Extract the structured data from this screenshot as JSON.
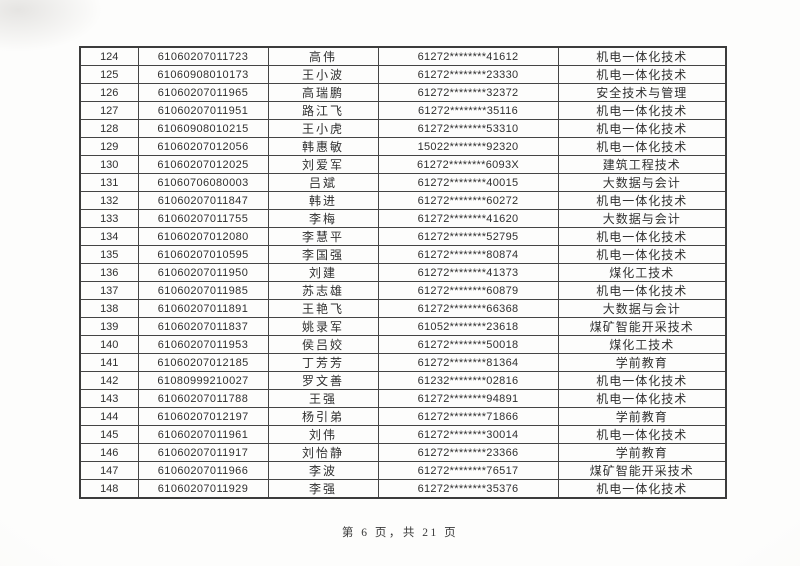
{
  "page": {
    "footer": "第 6 页，共 21 页"
  },
  "colors": {
    "page_background": "#fdfdfc",
    "table_border": "#454545",
    "text": "#2f2f2f"
  },
  "table": {
    "columns": [
      "row-number",
      "registration-id",
      "student-name",
      "masked-id-number",
      "major-name"
    ],
    "rows": [
      {
        "no": "124",
        "id": "61060207011723",
        "name": "高伟",
        "masked_id": "61272********41612",
        "major": "机电一体化技术"
      },
      {
        "no": "125",
        "id": "61060908010173",
        "name": "王小波",
        "masked_id": "61272********23330",
        "major": "机电一体化技术"
      },
      {
        "no": "126",
        "id": "61060207011965",
        "name": "高瑞鹏",
        "masked_id": "61272********32372",
        "major": "安全技术与管理"
      },
      {
        "no": "127",
        "id": "61060207011951",
        "name": "路江飞",
        "masked_id": "61272********35116",
        "major": "机电一体化技术"
      },
      {
        "no": "128",
        "id": "61060908010215",
        "name": "王小虎",
        "masked_id": "61272********53310",
        "major": "机电一体化技术"
      },
      {
        "no": "129",
        "id": "61060207012056",
        "name": "韩惠敏",
        "masked_id": "15022********92320",
        "major": "机电一体化技术"
      },
      {
        "no": "130",
        "id": "61060207012025",
        "name": "刘爱军",
        "masked_id": "61272********6093X",
        "major": "建筑工程技术"
      },
      {
        "no": "131",
        "id": "61060706080003",
        "name": "吕斌",
        "masked_id": "61272********40015",
        "major": "大数据与会计"
      },
      {
        "no": "132",
        "id": "61060207011847",
        "name": "韩进",
        "masked_id": "61272********60272",
        "major": "机电一体化技术"
      },
      {
        "no": "133",
        "id": "61060207011755",
        "name": "李梅",
        "masked_id": "61272********41620",
        "major": "大数据与会计"
      },
      {
        "no": "134",
        "id": "61060207012080",
        "name": "李慧平",
        "masked_id": "61272********52795",
        "major": "机电一体化技术"
      },
      {
        "no": "135",
        "id": "61060207010595",
        "name": "李国强",
        "masked_id": "61272********80874",
        "major": "机电一体化技术"
      },
      {
        "no": "136",
        "id": "61060207011950",
        "name": "刘建",
        "masked_id": "61272********41373",
        "major": "煤化工技术"
      },
      {
        "no": "137",
        "id": "61060207011985",
        "name": "苏志雄",
        "masked_id": "61272********60879",
        "major": "机电一体化技术"
      },
      {
        "no": "138",
        "id": "61060207011891",
        "name": "王艳飞",
        "masked_id": "61272********66368",
        "major": "大数据与会计"
      },
      {
        "no": "139",
        "id": "61060207011837",
        "name": "姚录军",
        "masked_id": "61052********23618",
        "major": "煤矿智能开采技术"
      },
      {
        "no": "140",
        "id": "61060207011953",
        "name": "侯吕姣",
        "masked_id": "61272********50018",
        "major": "煤化工技术"
      },
      {
        "no": "141",
        "id": "61060207012185",
        "name": "丁芳芳",
        "masked_id": "61272********81364",
        "major": "学前教育"
      },
      {
        "no": "142",
        "id": "61080999210027",
        "name": "罗文善",
        "masked_id": "61232********02816",
        "major": "机电一体化技术"
      },
      {
        "no": "143",
        "id": "61060207011788",
        "name": "王强",
        "masked_id": "61272********94891",
        "major": "机电一体化技术"
      },
      {
        "no": "144",
        "id": "61060207012197",
        "name": "杨引弟",
        "masked_id": "61272********71866",
        "major": "学前教育"
      },
      {
        "no": "145",
        "id": "61060207011961",
        "name": "刘伟",
        "masked_id": "61272********30014",
        "major": "机电一体化技术"
      },
      {
        "no": "146",
        "id": "61060207011917",
        "name": "刘怡静",
        "masked_id": "61272********23366",
        "major": "学前教育"
      },
      {
        "no": "147",
        "id": "61060207011966",
        "name": "李波",
        "masked_id": "61272********76517",
        "major": "煤矿智能开采技术"
      },
      {
        "no": "148",
        "id": "61060207011929",
        "name": "李强",
        "masked_id": "61272********35376",
        "major": "机电一体化技术"
      }
    ]
  }
}
